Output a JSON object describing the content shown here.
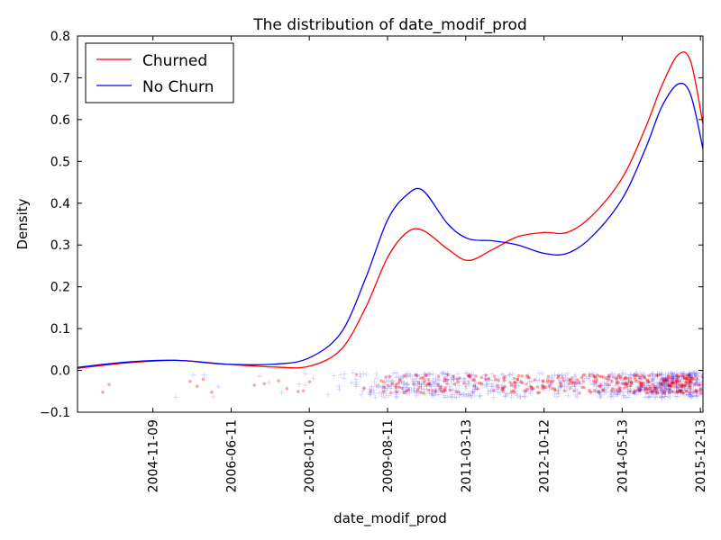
{
  "chart_data": {
    "type": "line",
    "title": "The distribution of date_modif_prod",
    "xlabel": "date_modif_prod",
    "ylabel": "Density",
    "xlim": [
      "2003-05-01",
      "2016-01-01"
    ],
    "ylim": [
      -0.1,
      0.8
    ],
    "x_ticks": [
      "2004-11-09",
      "2006-06-11",
      "2008-01-10",
      "2009-08-11",
      "2011-03-13",
      "2012-10-12",
      "2014-05-13",
      "2015-12-13"
    ],
    "y_ticks": [
      -0.1,
      0.0,
      0.1,
      0.2,
      0.3,
      0.4,
      0.5,
      0.6,
      0.7,
      0.8
    ],
    "y_tick_labels": [
      "−0.1",
      "0.0",
      "0.1",
      "0.2",
      "0.3",
      "0.4",
      "0.5",
      "0.6",
      "0.7",
      "0.8"
    ],
    "legend_position": "top-left",
    "grid": false,
    "series": [
      {
        "name": "Churned",
        "color": "#ff0000",
        "x": [
          "2003-05-01",
          "2004-05-01",
          "2005-05-01",
          "2006-05-01",
          "2007-05-01",
          "2008-01-10",
          "2008-09-01",
          "2009-03-01",
          "2009-08-11",
          "2010-01-01",
          "2010-05-01",
          "2010-11-01",
          "2011-04-01",
          "2011-10-01",
          "2012-04-01",
          "2012-10-12",
          "2013-04-01",
          "2013-10-01",
          "2014-05-13",
          "2014-11-01",
          "2015-03-01",
          "2015-07-01",
          "2015-10-01",
          "2016-01-01"
        ],
        "y": [
          0.005,
          0.018,
          0.024,
          0.015,
          0.008,
          0.01,
          0.05,
          0.15,
          0.27,
          0.33,
          0.335,
          0.29,
          0.263,
          0.29,
          0.32,
          0.33,
          0.33,
          0.37,
          0.46,
          0.58,
          0.68,
          0.755,
          0.74,
          0.59
        ]
      },
      {
        "name": "No Churn",
        "color": "#0000ff",
        "x": [
          "2003-05-01",
          "2004-05-01",
          "2005-05-01",
          "2006-05-01",
          "2007-05-01",
          "2008-01-10",
          "2008-09-01",
          "2009-03-01",
          "2009-08-11",
          "2010-01-01",
          "2010-05-01",
          "2010-11-01",
          "2011-04-01",
          "2011-10-01",
          "2012-04-01",
          "2012-10-12",
          "2013-04-01",
          "2013-10-01",
          "2014-05-13",
          "2014-11-01",
          "2015-03-01",
          "2015-07-01",
          "2015-10-01",
          "2016-01-01"
        ],
        "y": [
          0.007,
          0.02,
          0.024,
          0.015,
          0.015,
          0.03,
          0.09,
          0.22,
          0.36,
          0.42,
          0.43,
          0.35,
          0.315,
          0.31,
          0.3,
          0.28,
          0.28,
          0.32,
          0.41,
          0.53,
          0.63,
          0.685,
          0.66,
          0.53
        ]
      }
    ],
    "rug": [
      {
        "name": "Churned",
        "color": "#ff0000",
        "marker": "dot",
        "y_range": [
          -0.055,
          -0.01
        ]
      },
      {
        "name": "No Churn",
        "color": "#0000ff",
        "marker": "plus",
        "y_range": [
          -0.065,
          -0.005
        ]
      }
    ]
  }
}
